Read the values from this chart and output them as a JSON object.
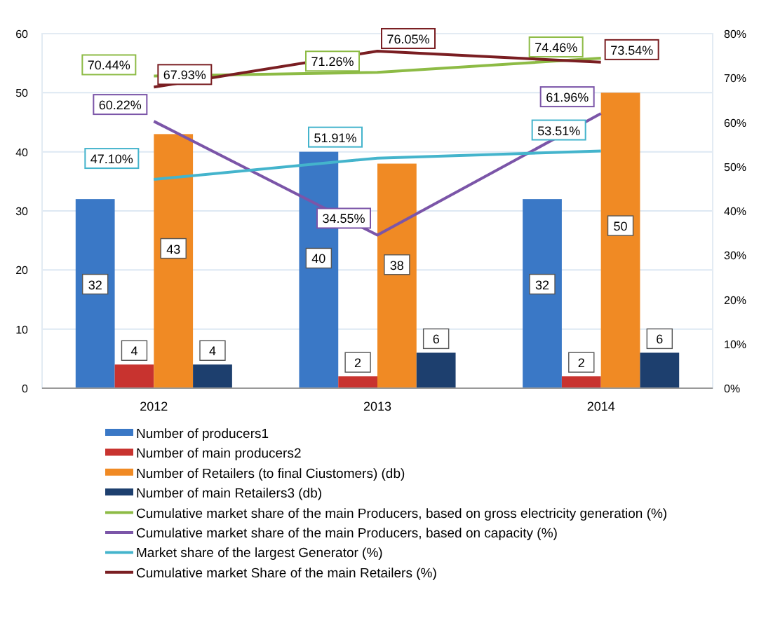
{
  "chart_data": {
    "type": "bar",
    "categories": [
      "2012",
      "2013",
      "2014"
    ],
    "series": [
      {
        "name": "Number of producers1",
        "color": "#3a78c6",
        "values": [
          32,
          40,
          32
        ],
        "value_labels": [
          "32",
          "40",
          "32"
        ]
      },
      {
        "name": "Number of main producers2",
        "color": "#c8332f",
        "values": [
          4,
          2,
          2
        ],
        "value_labels": [
          "4",
          "2",
          "2"
        ]
      },
      {
        "name": "Number of Retailers (to final Ciustomers) (db)",
        "color": "#f08a24",
        "values": [
          43,
          38,
          50
        ],
        "value_labels": [
          "43",
          "38",
          "50"
        ]
      },
      {
        "name": "Number of main Retailers3 (db)",
        "color": "#1d3f6e",
        "values": [
          4,
          6,
          6
        ],
        "value_labels": [
          "4",
          "6",
          "6"
        ]
      },
      {
        "name": "Cumulative market share of the main Producers, based on gross electricity generation (%)",
        "type": "line",
        "axis": "y2",
        "color": "#8dbb45",
        "values": [
          70.44,
          71.26,
          74.46
        ],
        "value_labels": [
          "70.44%",
          "71.26%",
          "74.46%"
        ]
      },
      {
        "name": "Cumulative market share of the main Producers, based on capacity (%)",
        "type": "line",
        "axis": "y2",
        "color": "#7b55a8",
        "values": [
          60.22,
          34.55,
          61.96
        ],
        "value_labels": [
          "60.22%",
          "34.55%",
          "61.96%"
        ]
      },
      {
        "name": "Market share of the largest Generator (%)",
        "type": "line",
        "axis": "y2",
        "color": "#44b4cc",
        "values": [
          47.1,
          51.91,
          53.51
        ],
        "value_labels": [
          "47.10%",
          "51.91%",
          "53.51%"
        ]
      },
      {
        "name": "Cumulative market Share of the main Retailers (%)",
        "type": "line",
        "axis": "y2",
        "color": "#7a1e22",
        "values": [
          67.93,
          76.05,
          73.54
        ],
        "value_labels": [
          "67.93%",
          "76.05%",
          "73.54%"
        ]
      }
    ],
    "ylim": [
      0,
      60
    ],
    "yticks": [
      0,
      10,
      20,
      30,
      40,
      50,
      60
    ],
    "y2lim": [
      0,
      80
    ],
    "y2ticks": [
      {
        "value": 0,
        "label": "0%"
      },
      {
        "value": 10,
        "label": "10%"
      },
      {
        "value": 20,
        "label": "20%"
      },
      {
        "value": 30,
        "label": "30%"
      },
      {
        "value": 40,
        "label": "40%"
      },
      {
        "value": 50,
        "label": "50%"
      },
      {
        "value": 60,
        "label": "60%"
      },
      {
        "value": 70,
        "label": "70%"
      },
      {
        "value": 80,
        "label": "80%"
      }
    ],
    "grid": "y",
    "legend": "bottom"
  }
}
